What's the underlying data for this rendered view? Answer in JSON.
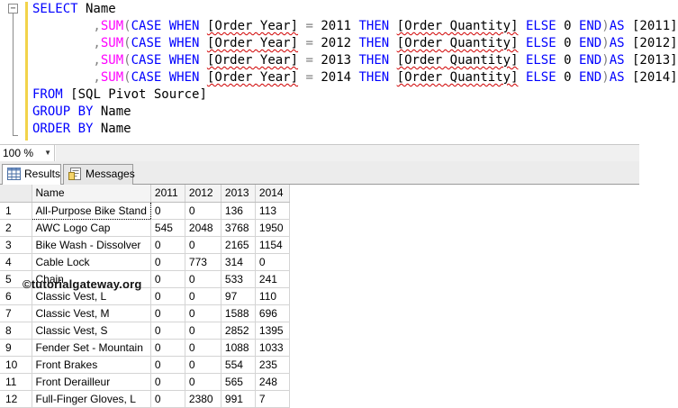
{
  "editor": {
    "collapse_glyph": "−",
    "lines": [
      [
        {
          "t": "SELECT",
          "c": "kw"
        },
        {
          "t": " Name"
        }
      ],
      [
        {
          "t": "        ,",
          "c": "gray"
        },
        {
          "t": "SUM",
          "c": "fn"
        },
        {
          "t": "(",
          "c": "gray"
        },
        {
          "t": "CASE WHEN ",
          "c": "kw"
        },
        {
          "t": "[Order Year]",
          "c": "id"
        },
        {
          "t": " = ",
          "c": "gray"
        },
        {
          "t": "2011 "
        },
        {
          "t": "THEN ",
          "c": "kw"
        },
        {
          "t": "[Order Quantity]",
          "c": "id"
        },
        {
          "t": " ELSE ",
          "c": "kw"
        },
        {
          "t": "0 "
        },
        {
          "t": "END",
          "c": "kw"
        },
        {
          "t": ")",
          "c": "gray"
        },
        {
          "t": "AS ",
          "c": "kw"
        },
        {
          "t": "[2011]"
        }
      ],
      [
        {
          "t": "        ,",
          "c": "gray"
        },
        {
          "t": "SUM",
          "c": "fn"
        },
        {
          "t": "(",
          "c": "gray"
        },
        {
          "t": "CASE WHEN ",
          "c": "kw"
        },
        {
          "t": "[Order Year]",
          "c": "id"
        },
        {
          "t": " = ",
          "c": "gray"
        },
        {
          "t": "2012 "
        },
        {
          "t": "THEN ",
          "c": "kw"
        },
        {
          "t": "[Order Quantity]",
          "c": "id"
        },
        {
          "t": " ELSE ",
          "c": "kw"
        },
        {
          "t": "0 "
        },
        {
          "t": "END",
          "c": "kw"
        },
        {
          "t": ")",
          "c": "gray"
        },
        {
          "t": "AS ",
          "c": "kw"
        },
        {
          "t": "[2012]"
        }
      ],
      [
        {
          "t": "        ,",
          "c": "gray"
        },
        {
          "t": "SUM",
          "c": "fn"
        },
        {
          "t": "(",
          "c": "gray"
        },
        {
          "t": "CASE WHEN ",
          "c": "kw"
        },
        {
          "t": "[Order Year]",
          "c": "id"
        },
        {
          "t": " = ",
          "c": "gray"
        },
        {
          "t": "2013 "
        },
        {
          "t": "THEN ",
          "c": "kw"
        },
        {
          "t": "[Order Quantity]",
          "c": "id"
        },
        {
          "t": " ELSE ",
          "c": "kw"
        },
        {
          "t": "0 "
        },
        {
          "t": "END",
          "c": "kw"
        },
        {
          "t": ")",
          "c": "gray"
        },
        {
          "t": "AS ",
          "c": "kw"
        },
        {
          "t": "[2013]"
        }
      ],
      [
        {
          "t": "        ,",
          "c": "gray"
        },
        {
          "t": "SUM",
          "c": "fn"
        },
        {
          "t": "(",
          "c": "gray"
        },
        {
          "t": "CASE WHEN ",
          "c": "kw"
        },
        {
          "t": "[Order Year]",
          "c": "id"
        },
        {
          "t": " = ",
          "c": "gray"
        },
        {
          "t": "2014 "
        },
        {
          "t": "THEN ",
          "c": "kw"
        },
        {
          "t": "[Order Quantity]",
          "c": "id"
        },
        {
          "t": " ELSE ",
          "c": "kw"
        },
        {
          "t": "0 "
        },
        {
          "t": "END",
          "c": "kw"
        },
        {
          "t": ")",
          "c": "gray"
        },
        {
          "t": "AS ",
          "c": "kw"
        },
        {
          "t": "[2014]"
        }
      ],
      [
        {
          "t": "FROM ",
          "c": "kw"
        },
        {
          "t": "[SQL Pivot Source]"
        }
      ],
      [
        {
          "t": "GROUP BY ",
          "c": "kw"
        },
        {
          "t": "Name"
        }
      ],
      [
        {
          "t": "ORDER BY ",
          "c": "kw"
        },
        {
          "t": "Name"
        }
      ]
    ]
  },
  "zoom": {
    "value": "100 %"
  },
  "tabs": {
    "results": "Results",
    "messages": "Messages"
  },
  "grid": {
    "columns": [
      "Name",
      "2011",
      "2012",
      "2013",
      "2014"
    ],
    "rows": [
      [
        "1",
        "All-Purpose Bike Stand",
        "0",
        "0",
        "136",
        "113"
      ],
      [
        "2",
        "AWC Logo Cap",
        "545",
        "2048",
        "3768",
        "1950"
      ],
      [
        "3",
        "Bike Wash - Dissolver",
        "0",
        "0",
        "2165",
        "1154"
      ],
      [
        "4",
        "Cable Lock",
        "0",
        "773",
        "314",
        "0"
      ],
      [
        "5",
        "Chain",
        "0",
        "0",
        "533",
        "241"
      ],
      [
        "6",
        "Classic Vest, L",
        "0",
        "0",
        "97",
        "110"
      ],
      [
        "7",
        "Classic Vest, M",
        "0",
        "0",
        "1588",
        "696"
      ],
      [
        "8",
        "Classic Vest, S",
        "0",
        "0",
        "2852",
        "1395"
      ],
      [
        "9",
        "Fender Set - Mountain",
        "0",
        "0",
        "1088",
        "1033"
      ],
      [
        "10",
        "Front Brakes",
        "0",
        "0",
        "554",
        "235"
      ],
      [
        "11",
        "Front Derailleur",
        "0",
        "0",
        "565",
        "248"
      ],
      [
        "12",
        "Full-Finger Gloves, L",
        "0",
        "2380",
        "991",
        "7"
      ]
    ]
  },
  "watermark": "©tutorialgateway.org",
  "colors": {
    "keyword": "#0000ff",
    "operator": "#808080",
    "function": "#ff00ff",
    "squiggle": "#d00000",
    "change_bar": "#f2d34a"
  }
}
